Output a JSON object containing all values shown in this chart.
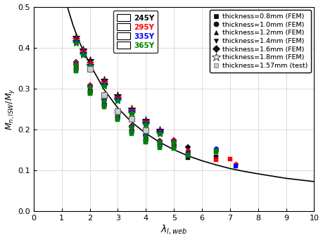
{
  "title": "",
  "xlabel": "$\\lambda_{l,web}$",
  "ylabel": "$M_{n,lSW}/M_y$",
  "xlim": [
    0,
    10
  ],
  "ylim": [
    0,
    0.5
  ],
  "xticks": [
    0,
    1,
    2,
    3,
    4,
    5,
    6,
    7,
    8,
    9,
    10
  ],
  "yticks": [
    0.0,
    0.1,
    0.2,
    0.3,
    0.4,
    0.5
  ],
  "curve_color": "#000000",
  "grid_color": "#cccccc",
  "legend1_labels": [
    "245Y",
    "295Y",
    "335Y",
    "365Y"
  ],
  "legend1_colors": [
    "#000000",
    "#ff0000",
    "#0000ff",
    "#008000"
  ],
  "legend2_labels": [
    "thickness=0.8mm (FEM)",
    "thickness=1.0mm (FEM)",
    "thickness=1.2mm (FEM)",
    "thickness=1.4mm (FEM)",
    "thickness=1.6mm (FEM)",
    "thickness=1.8mm (FEM)",
    "thickness=1.57mm (test)"
  ],
  "data_245Y": {
    "0.8mm": [
      [
        1.5,
        0.352
      ],
      [
        2.0,
        0.294
      ],
      [
        2.5,
        0.265
      ],
      [
        3.0,
        0.233
      ],
      [
        3.5,
        0.196
      ],
      [
        4.0,
        0.175
      ],
      [
        4.5,
        0.165
      ],
      [
        5.0,
        0.165
      ],
      [
        5.5,
        0.13
      ],
      [
        6.5,
        0.132
      ]
    ],
    "1.0mm": [
      [
        1.5,
        0.357
      ],
      [
        2.0,
        0.296
      ],
      [
        2.5,
        0.262
      ],
      [
        3.0,
        0.232
      ],
      [
        3.5,
        0.198
      ],
      [
        4.0,
        0.178
      ],
      [
        4.5,
        0.163
      ],
      [
        5.0,
        0.163
      ],
      [
        5.5,
        0.148
      ],
      [
        6.5,
        0.149
      ]
    ],
    "1.2mm": [
      [
        1.5,
        0.36
      ],
      [
        2.0,
        0.3
      ],
      [
        2.5,
        0.268
      ],
      [
        3.0,
        0.234
      ],
      [
        3.5,
        0.202
      ],
      [
        4.0,
        0.18
      ],
      [
        4.5,
        0.166
      ],
      [
        5.0,
        0.168
      ],
      [
        5.5,
        0.15
      ]
    ],
    "1.4mm": [
      [
        1.5,
        0.362
      ],
      [
        2.0,
        0.303
      ],
      [
        2.5,
        0.27
      ],
      [
        3.0,
        0.238
      ],
      [
        3.5,
        0.205
      ],
      [
        4.0,
        0.182
      ],
      [
        4.5,
        0.168
      ],
      [
        5.0,
        0.17
      ],
      [
        5.5,
        0.153
      ]
    ],
    "1.6mm": [
      [
        1.5,
        0.365
      ],
      [
        2.0,
        0.308
      ],
      [
        2.5,
        0.273
      ],
      [
        3.0,
        0.242
      ],
      [
        3.5,
        0.208
      ],
      [
        4.0,
        0.185
      ],
      [
        4.5,
        0.172
      ],
      [
        5.0,
        0.173
      ],
      [
        5.5,
        0.156
      ]
    ],
    "1.8mm": [
      [
        1.5,
        0.425
      ],
      [
        1.75,
        0.395
      ],
      [
        2.0,
        0.368
      ],
      [
        2.5,
        0.32
      ],
      [
        3.0,
        0.282
      ],
      [
        3.5,
        0.25
      ],
      [
        4.0,
        0.222
      ],
      [
        4.5,
        0.198
      ]
    ]
  },
  "data_295Y": {
    "0.8mm": [
      [
        1.5,
        0.348
      ],
      [
        2.0,
        0.291
      ],
      [
        2.5,
        0.26
      ],
      [
        3.0,
        0.229
      ],
      [
        3.5,
        0.196
      ],
      [
        4.0,
        0.174
      ],
      [
        4.5,
        0.161
      ],
      [
        5.0,
        0.16
      ],
      [
        5.5,
        0.142
      ],
      [
        6.5,
        0.125
      ],
      [
        7.0,
        0.127
      ]
    ],
    "1.0mm": [
      [
        1.5,
        0.353
      ],
      [
        2.0,
        0.295
      ],
      [
        2.5,
        0.263
      ],
      [
        3.0,
        0.232
      ],
      [
        3.5,
        0.199
      ],
      [
        4.0,
        0.177
      ],
      [
        4.5,
        0.163
      ],
      [
        5.0,
        0.162
      ],
      [
        5.5,
        0.146
      ],
      [
        6.5,
        0.148
      ],
      [
        7.2,
        0.115
      ]
    ],
    "1.2mm": [
      [
        1.5,
        0.357
      ],
      [
        2.0,
        0.298
      ],
      [
        2.5,
        0.266
      ],
      [
        3.0,
        0.234
      ],
      [
        3.5,
        0.203
      ],
      [
        4.0,
        0.18
      ],
      [
        4.5,
        0.167
      ],
      [
        5.0,
        0.165
      ],
      [
        5.5,
        0.15
      ]
    ],
    "1.4mm": [
      [
        1.5,
        0.36
      ],
      [
        2.0,
        0.302
      ],
      [
        2.5,
        0.27
      ],
      [
        3.0,
        0.237
      ],
      [
        3.5,
        0.206
      ],
      [
        4.0,
        0.183
      ],
      [
        4.5,
        0.17
      ],
      [
        5.0,
        0.168
      ]
    ],
    "1.6mm": [
      [
        1.5,
        0.363
      ],
      [
        2.0,
        0.308
      ],
      [
        2.5,
        0.273
      ],
      [
        3.0,
        0.242
      ],
      [
        3.5,
        0.208
      ],
      [
        4.0,
        0.186
      ],
      [
        4.5,
        0.172
      ],
      [
        5.0,
        0.173
      ]
    ],
    "1.8mm": [
      [
        1.5,
        0.42
      ],
      [
        1.75,
        0.39
      ],
      [
        2.0,
        0.362
      ],
      [
        2.5,
        0.315
      ],
      [
        3.0,
        0.277
      ],
      [
        3.5,
        0.246
      ],
      [
        4.0,
        0.219
      ],
      [
        4.5,
        0.195
      ]
    ]
  },
  "data_335Y": {
    "0.8mm": [
      [
        1.5,
        0.344
      ],
      [
        2.0,
        0.289
      ],
      [
        2.5,
        0.258
      ],
      [
        3.0,
        0.226
      ],
      [
        3.5,
        0.193
      ],
      [
        4.0,
        0.17
      ],
      [
        4.5,
        0.158
      ],
      [
        5.0,
        0.156
      ],
      [
        5.5,
        0.138
      ],
      [
        6.5,
        0.148
      ],
      [
        7.2,
        0.11
      ]
    ],
    "1.0mm": [
      [
        1.5,
        0.35
      ],
      [
        2.0,
        0.293
      ],
      [
        2.5,
        0.261
      ],
      [
        3.0,
        0.23
      ],
      [
        3.5,
        0.197
      ],
      [
        4.0,
        0.176
      ],
      [
        4.5,
        0.161
      ],
      [
        5.0,
        0.159
      ],
      [
        5.5,
        0.143
      ],
      [
        6.5,
        0.153
      ]
    ],
    "1.2mm": [
      [
        1.5,
        0.353
      ],
      [
        2.0,
        0.296
      ],
      [
        2.5,
        0.264
      ],
      [
        3.0,
        0.232
      ],
      [
        3.5,
        0.201
      ],
      [
        4.0,
        0.179
      ],
      [
        4.5,
        0.164
      ],
      [
        5.0,
        0.162
      ]
    ],
    "1.4mm": [
      [
        1.5,
        0.357
      ],
      [
        2.0,
        0.3
      ],
      [
        2.5,
        0.268
      ],
      [
        3.0,
        0.236
      ],
      [
        3.5,
        0.204
      ],
      [
        4.0,
        0.182
      ],
      [
        4.5,
        0.168
      ],
      [
        5.0,
        0.166
      ]
    ],
    "1.6mm": [
      [
        1.5,
        0.36
      ],
      [
        2.0,
        0.305
      ],
      [
        2.5,
        0.272
      ],
      [
        3.0,
        0.24
      ],
      [
        3.5,
        0.207
      ],
      [
        4.0,
        0.185
      ],
      [
        4.5,
        0.17
      ],
      [
        5.0,
        0.17
      ]
    ],
    "1.8mm": [
      [
        1.5,
        0.415
      ],
      [
        1.75,
        0.385
      ],
      [
        2.0,
        0.357
      ],
      [
        2.5,
        0.31
      ],
      [
        3.0,
        0.273
      ],
      [
        3.5,
        0.242
      ],
      [
        4.0,
        0.215
      ],
      [
        4.5,
        0.192
      ]
    ]
  },
  "data_365Y": {
    "0.8mm": [
      [
        1.5,
        0.342
      ],
      [
        2.0,
        0.287
      ],
      [
        2.5,
        0.255
      ],
      [
        3.0,
        0.224
      ],
      [
        3.5,
        0.19
      ],
      [
        4.0,
        0.168
      ],
      [
        4.5,
        0.155
      ],
      [
        5.0,
        0.153
      ],
      [
        5.5,
        0.135
      ],
      [
        6.5,
        0.145
      ]
    ],
    "1.0mm": [
      [
        1.5,
        0.348
      ],
      [
        2.0,
        0.29
      ],
      [
        2.5,
        0.258
      ],
      [
        3.0,
        0.227
      ],
      [
        3.5,
        0.195
      ],
      [
        4.0,
        0.173
      ],
      [
        4.5,
        0.16
      ],
      [
        5.0,
        0.157
      ],
      [
        5.5,
        0.14
      ],
      [
        6.5,
        0.15
      ]
    ],
    "1.2mm": [
      [
        1.5,
        0.351
      ],
      [
        2.0,
        0.294
      ],
      [
        2.5,
        0.262
      ],
      [
        3.0,
        0.23
      ],
      [
        3.5,
        0.198
      ],
      [
        4.0,
        0.177
      ],
      [
        4.5,
        0.162
      ],
      [
        5.0,
        0.16
      ]
    ],
    "1.4mm": [
      [
        1.5,
        0.355
      ],
      [
        2.0,
        0.297
      ],
      [
        2.5,
        0.266
      ],
      [
        3.0,
        0.234
      ],
      [
        3.5,
        0.202
      ],
      [
        4.0,
        0.18
      ],
      [
        4.5,
        0.166
      ],
      [
        5.0,
        0.164
      ]
    ],
    "1.6mm": [
      [
        1.5,
        0.358
      ],
      [
        2.0,
        0.302
      ],
      [
        2.5,
        0.27
      ],
      [
        3.0,
        0.238
      ],
      [
        3.5,
        0.205
      ],
      [
        4.0,
        0.183
      ],
      [
        4.5,
        0.168
      ],
      [
        5.0,
        0.168
      ]
    ],
    "1.8mm": [
      [
        1.5,
        0.412
      ],
      [
        1.75,
        0.382
      ],
      [
        2.0,
        0.354
      ],
      [
        2.5,
        0.307
      ],
      [
        3.0,
        0.27
      ],
      [
        3.5,
        0.239
      ],
      [
        4.0,
        0.212
      ],
      [
        4.5,
        0.189
      ]
    ]
  },
  "data_test": {
    "1.57mm": [
      [
        2.0,
        0.347
      ],
      [
        2.5,
        0.284
      ],
      [
        3.0,
        0.245
      ],
      [
        3.5,
        0.225
      ],
      [
        4.0,
        0.198
      ]
    ]
  },
  "curve_x": [
    1.2,
    1.4,
    1.6,
    1.8,
    2.0,
    2.5,
    3.0,
    3.5,
    4.0,
    4.5,
    5.0,
    5.5,
    6.0,
    6.5,
    7.0,
    7.5,
    8.0,
    9.0,
    10.0
  ],
  "curve_y": [
    0.5,
    0.455,
    0.418,
    0.388,
    0.36,
    0.298,
    0.252,
    0.217,
    0.19,
    0.168,
    0.15,
    0.135,
    0.123,
    0.113,
    0.104,
    0.097,
    0.091,
    0.08,
    0.072
  ]
}
